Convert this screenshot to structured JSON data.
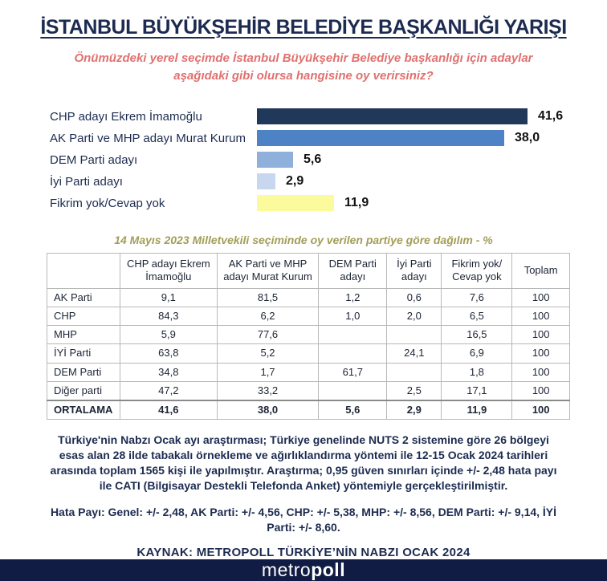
{
  "page": {
    "title": "İSTANBUL BÜYÜKŞEHİR BELEDİYE BAŞKANLIĞI YARIŞI",
    "subtitle": "Önümüzdeki yerel seçimde İstanbul Büyükşehir Belediye başkanlığı için adaylar aşağıdaki gibi olursa hangisine oy verirsiniz?"
  },
  "chart_data": {
    "type": "bar",
    "orientation": "horizontal",
    "categories": [
      "CHP adayı Ekrem İmamoğlu",
      "AK Parti ve MHP adayı Murat Kurum",
      "DEM Parti adayı",
      "İyi Parti adayı",
      "Fikrim yok/Cevap yok"
    ],
    "values": [
      41.6,
      38.0,
      5.6,
      2.9,
      11.9
    ],
    "value_labels": [
      "41,6",
      "38,0",
      "5,6",
      "2,9",
      "11,9"
    ],
    "bar_colors": [
      "#20395b",
      "#4d82c4",
      "#8fb0da",
      "#c6d7ef",
      "#fbfa9d"
    ],
    "unit": "%",
    "xlim": [
      0,
      45
    ],
    "grid": false,
    "legend": false,
    "value_label_position": "end-of-bar"
  },
  "table": {
    "caption": "14 Mayıs 2023 Milletvekili seçiminde oy verilen partiye göre dağılım - %",
    "columns": [
      "",
      "CHP adayı Ekrem İmamoğlu",
      "AK Parti ve MHP adayı Murat Kurum",
      "DEM Parti adayı",
      "İyi Parti adayı",
      "Fikrim yok/ Cevap yok",
      "Toplam"
    ],
    "column_widths_pct": [
      14,
      18.5,
      19.5,
      13,
      10.5,
      13.5,
      11
    ],
    "rows": [
      {
        "label": "AK Parti",
        "cells": [
          "9,1",
          "81,5",
          "1,2",
          "0,6",
          "7,6",
          "100"
        ],
        "total": false
      },
      {
        "label": "CHP",
        "cells": [
          "84,3",
          "6,2",
          "1,0",
          "2,0",
          "6,5",
          "100"
        ],
        "total": false
      },
      {
        "label": "MHP",
        "cells": [
          "5,9",
          "77,6",
          "",
          "",
          "16,5",
          "100"
        ],
        "total": false
      },
      {
        "label": "İYİ Parti",
        "cells": [
          "63,8",
          "5,2",
          "",
          "24,1",
          "6,9",
          "100"
        ],
        "total": false
      },
      {
        "label": "DEM Parti",
        "cells": [
          "34,8",
          "1,7",
          "61,7",
          "",
          "1,8",
          "100"
        ],
        "total": false
      },
      {
        "label": "Diğer parti",
        "cells": [
          "47,2",
          "33,2",
          "",
          "2,5",
          "17,1",
          "100"
        ],
        "total": false
      },
      {
        "label": "ORTALAMA",
        "cells": [
          "41,6",
          "38,0",
          "5,6",
          "2,9",
          "11,9",
          "100"
        ],
        "total": true
      }
    ]
  },
  "footer": {
    "methodology": "Türkiye'nin Nabzı Ocak ayı araştırması; Türkiye genelinde NUTS 2 sistemine göre 26 bölgeyi esas alan 28 ilde tabakalı örnekleme ve ağırlıklandırma yöntemi ile 12-15 Ocak 2024 tarihleri arasında toplam 1565 kişi ile yapılmıştır. Araştırma; 0,95 güven sınırları içinde +/- 2,48 hata payı ile CATI (Bilgisayar Destekli Telefonda Anket) yöntemiyle gerçekleştirilmiştir.",
    "error_margins": "Hata Payı: Genel: +/- 2,48, AK Parti: +/- 4,56, CHP: +/- 5,38, MHP: +/- 8,56, DEM Parti: +/- 9,14, İYİ Parti: +/- 8,60.",
    "source": "KAYNAK: METROPOLL TÜRKİYE’NİN NABZI OCAK 2024"
  },
  "brand": {
    "logo_prefix": "metro",
    "logo_suffix": "poll",
    "bar_color": "#111c44"
  },
  "colors": {
    "title_navy": "#1c2b50",
    "subtitle_coral": "#e0716f",
    "caption_olive": "#a29e56",
    "table_border": "#b8b8b8",
    "value_label": "#111111"
  }
}
